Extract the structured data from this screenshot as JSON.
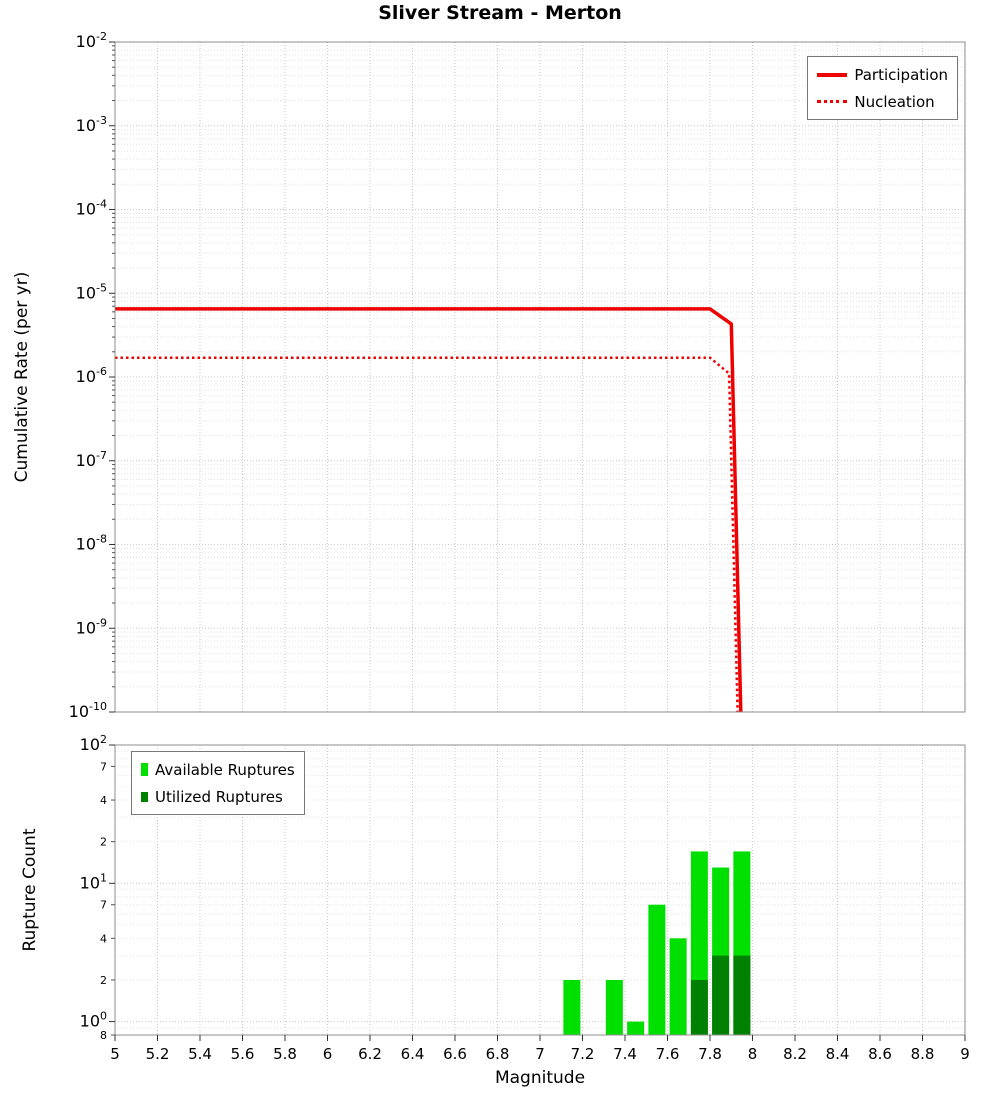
{
  "figure": {
    "title": "Sliver Stream - Merton",
    "xlabel": "Magnitude"
  },
  "chart_data": [
    {
      "type": "line",
      "title": "Sliver Stream - Merton",
      "xlabel": "Magnitude",
      "ylabel": "Cumulative Rate (per yr)",
      "xlim": [
        5,
        9
      ],
      "ylim": [
        1e-10,
        0.01
      ],
      "y_scale": "log",
      "grid": true,
      "legend_position": "top-right",
      "x_tick_labels": [
        "5",
        "5.2",
        "5.4",
        "5.6",
        "5.8",
        "6",
        "6.2",
        "6.4",
        "6.6",
        "6.8",
        "7",
        "7.2",
        "7.4",
        "7.6",
        "7.8",
        "8",
        "8.2",
        "8.4",
        "8.6",
        "8.8",
        "9"
      ],
      "y_tick_exponents": [
        -2,
        -3,
        -4,
        -5,
        -6,
        -7,
        -8,
        -9,
        -10
      ],
      "series": [
        {
          "name": "Participation",
          "style": "solid",
          "color": "#ee0000",
          "points": [
            [
              5,
              6.5e-06
            ],
            [
              7.8,
              6.5e-06
            ],
            [
              7.9,
              4.3e-06
            ],
            [
              7.945,
              1e-10
            ]
          ]
        },
        {
          "name": "Nucleation",
          "style": "dotted",
          "color": "#ee0000",
          "points": [
            [
              5,
              1.7e-06
            ],
            [
              7.8,
              1.7e-06
            ],
            [
              7.89,
              1.1e-06
            ],
            [
              7.93,
              1e-10
            ]
          ]
        }
      ]
    },
    {
      "type": "bar",
      "title": "",
      "xlabel": "Magnitude",
      "ylabel": "Rupture Count",
      "xlim": [
        5,
        9
      ],
      "ylim": [
        0.8,
        100
      ],
      "y_scale": "log",
      "grid": true,
      "legend_position": "top-left",
      "bar_width": 0.08,
      "y_ticks": [
        {
          "value": 100,
          "base": "10",
          "exp": "2"
        },
        {
          "value": 70,
          "label": "7"
        },
        {
          "value": 40,
          "label": "4"
        },
        {
          "value": 20,
          "label": "2"
        },
        {
          "value": 10,
          "base": "10",
          "exp": "1"
        },
        {
          "value": 7,
          "label": "7"
        },
        {
          "value": 4,
          "label": "4"
        },
        {
          "value": 2,
          "label": "2"
        },
        {
          "value": 1,
          "base": "10",
          "exp": "0"
        },
        {
          "value": 0.8,
          "label": "8"
        }
      ],
      "series": [
        {
          "name": "Available Ruptures",
          "color": "#00e000",
          "bars": [
            {
              "m": 7.15,
              "count": 2
            },
            {
              "m": 7.35,
              "count": 2
            },
            {
              "m": 7.45,
              "count": 1
            },
            {
              "m": 7.55,
              "count": 7
            },
            {
              "m": 7.65,
              "count": 4
            },
            {
              "m": 7.75,
              "count": 17
            },
            {
              "m": 7.85,
              "count": 13
            },
            {
              "m": 7.95,
              "count": 17
            }
          ]
        },
        {
          "name": "Utilized Ruptures",
          "color": "#008000",
          "bars": [
            {
              "m": 7.75,
              "count": 2
            },
            {
              "m": 7.85,
              "count": 3
            },
            {
              "m": 7.95,
              "count": 3
            }
          ]
        }
      ]
    }
  ]
}
